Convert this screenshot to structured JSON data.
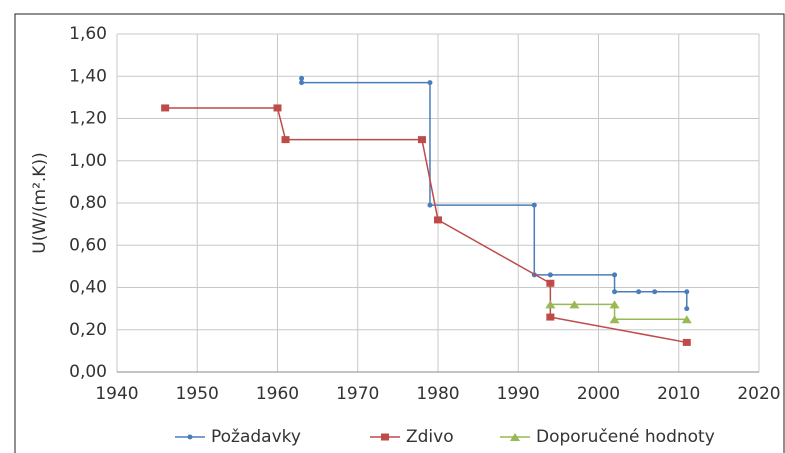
{
  "chart_data": {
    "type": "line",
    "y_label": "U(W/(m².K))",
    "xlim": [
      1940,
      2020
    ],
    "xticks": [
      1940,
      1950,
      1960,
      1970,
      1980,
      1990,
      2000,
      2010,
      2020
    ],
    "ylim": [
      0,
      1.6
    ],
    "yticks": [
      {
        "value": 0,
        "label": "0,00"
      },
      {
        "value": 0.2,
        "label": "0,20"
      },
      {
        "value": 0.4,
        "label": "0,40"
      },
      {
        "value": 0.6,
        "label": "0,60"
      },
      {
        "value": 0.8,
        "label": "0,80"
      },
      {
        "value": 1.0,
        "label": "1,00"
      },
      {
        "value": 1.2,
        "label": "1,20"
      },
      {
        "value": 1.4,
        "label": "1,40"
      },
      {
        "value": 1.6,
        "label": "1,60"
      }
    ],
    "grid": true,
    "legend": "bottom",
    "series": [
      {
        "name": "Požadavky",
        "color": "#4a7ebb",
        "marker": "circle",
        "x": [
          1963,
          1963,
          1979,
          1979,
          1992,
          1992,
          1994,
          2002,
          2002,
          2005,
          2007,
          2011,
          2011
        ],
        "values": [
          1.39,
          1.37,
          1.37,
          0.79,
          0.79,
          0.46,
          0.46,
          0.46,
          0.38,
          0.38,
          0.38,
          0.38,
          0.3
        ]
      },
      {
        "name": "Zdivo",
        "color": "#be4b48",
        "marker": "square",
        "x": [
          1946,
          1960,
          1961,
          1978,
          1980,
          1994,
          1994,
          2011
        ],
        "values": [
          1.25,
          1.25,
          1.1,
          1.1,
          0.72,
          0.42,
          0.26,
          0.14
        ]
      },
      {
        "name": "Doporučené hodnoty",
        "color": "#98b954",
        "marker": "triangle",
        "x": [
          1994,
          1997,
          2002,
          2002,
          2011
        ],
        "values": [
          0.32,
          0.32,
          0.32,
          0.25,
          0.25
        ]
      }
    ]
  }
}
